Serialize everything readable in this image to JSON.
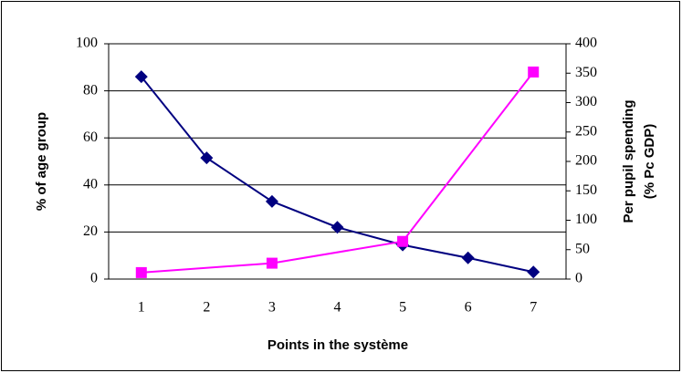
{
  "chart_data": {
    "type": "line",
    "xlabel": "Points in the système",
    "ylabel": "% of age group",
    "y2label": [
      "Per pupil spending",
      "(% Pc GDP)"
    ],
    "x": [
      1,
      2,
      3,
      4,
      5,
      6,
      7
    ],
    "xlim": [
      0.5,
      7.5
    ],
    "xticks": [
      1,
      2,
      3,
      4,
      5,
      6,
      7
    ],
    "ylim": [
      0,
      100
    ],
    "yticks": [
      0,
      20,
      40,
      60,
      80,
      100
    ],
    "y2lim": [
      0,
      400
    ],
    "y2ticks": [
      0,
      50,
      100,
      150,
      200,
      250,
      300,
      350,
      400
    ],
    "grid": true,
    "series": [
      {
        "color": "#000080",
        "marker": "diamond",
        "values": [
          86,
          51.5,
          33,
          22,
          14.5,
          9,
          3
        ]
      },
      {
        "color": "#ff00ff",
        "marker": "square",
        "axis": "y2",
        "x": [
          1,
          3,
          5,
          7
        ],
        "values": [
          11,
          27,
          64,
          352
        ]
      }
    ]
  }
}
